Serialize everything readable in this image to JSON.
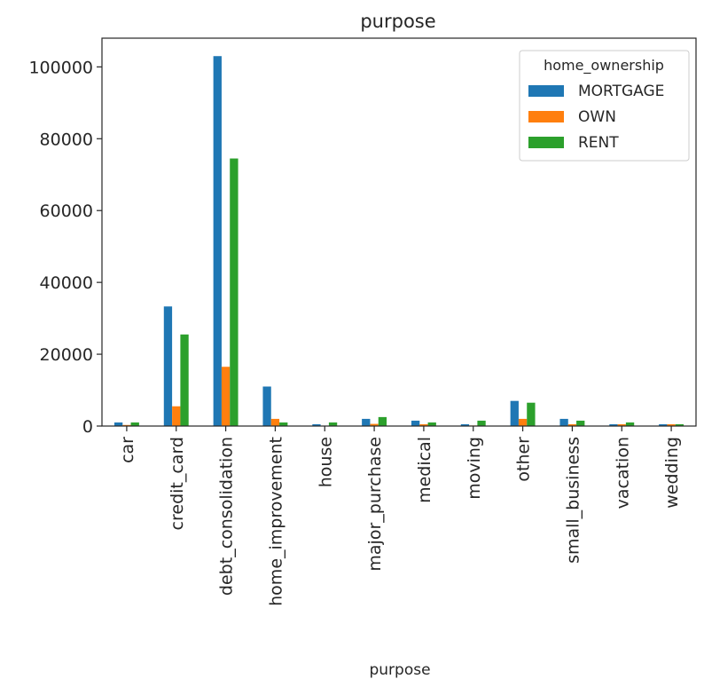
{
  "chart_data": {
    "type": "bar",
    "title": "purpose",
    "xlabel": "purpose",
    "ylabel": "",
    "ylim": [
      0,
      108000
    ],
    "yticks": [
      0,
      20000,
      40000,
      60000,
      80000,
      100000
    ],
    "grid": false,
    "legend": {
      "title": "home_ownership",
      "placement": "top-right"
    },
    "categories": [
      "car",
      "credit_card",
      "debt_consolidation",
      "home_improvement",
      "house",
      "major_purchase",
      "medical",
      "moving",
      "other",
      "small_business",
      "vacation",
      "wedding"
    ],
    "series": [
      {
        "name": "MORTGAGE",
        "color": "#1f77b4",
        "values": [
          1000,
          33300,
          103000,
          11000,
          500,
          2000,
          1500,
          500,
          7000,
          2000,
          500,
          500
        ]
      },
      {
        "name": "OWN",
        "color": "#ff7f0e",
        "values": [
          300,
          5500,
          16500,
          2000,
          100,
          600,
          500,
          150,
          2000,
          500,
          500,
          500
        ]
      },
      {
        "name": "RENT",
        "color": "#2ca02c",
        "values": [
          1000,
          25500,
          74500,
          1000,
          1000,
          2500,
          1000,
          1500,
          6500,
          1500,
          1000,
          500
        ]
      }
    ]
  }
}
